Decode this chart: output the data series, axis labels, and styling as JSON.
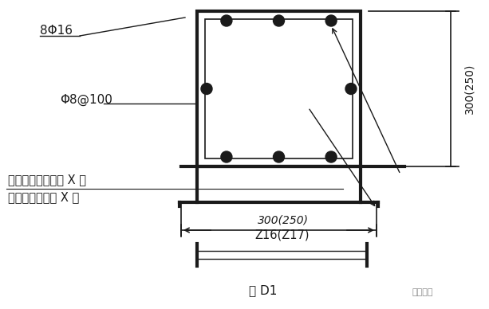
{
  "bg_color": "#ffffff",
  "line_color": "#1a1a1a",
  "title": "图 D1",
  "label_8phi16": "8Φ16",
  "label_phi8": "Φ8@100",
  "label_line1": "见设计变更通知单 X 号",
  "label_line2": "或工程洽商记录 X 号",
  "label_300_250_h": "300(250)",
  "label_300_250_w": "300(250)",
  "label_z16": "Z16(Z17)",
  "figsize": [
    6.13,
    3.88
  ],
  "dpi": 100
}
